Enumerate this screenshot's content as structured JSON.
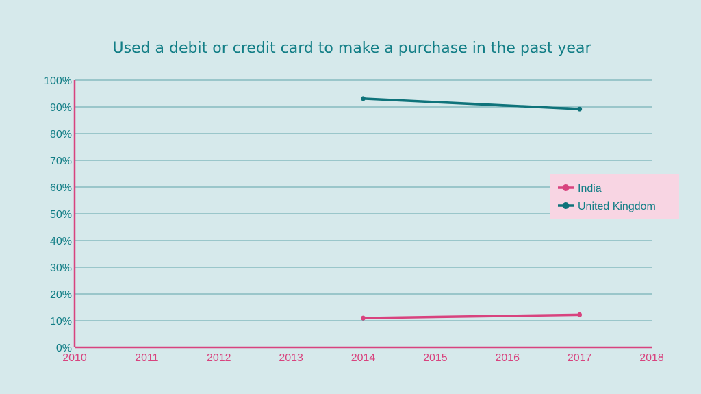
{
  "chart_data": {
    "type": "line",
    "title": "Used a debit or credit card to make a purchase in the past year",
    "xlabel": "",
    "ylabel": "",
    "x_ticks": [
      "2010",
      "2011",
      "2012",
      "2013",
      "2014",
      "2015",
      "2016",
      "2017",
      "2018"
    ],
    "y_ticks": [
      "0%",
      "10%",
      "20%",
      "30%",
      "40%",
      "50%",
      "60%",
      "70%",
      "80%",
      "90%",
      "100%"
    ],
    "xlim": [
      2010,
      2018
    ],
    "ylim": [
      0,
      100
    ],
    "grid": true,
    "legend_position": "right",
    "series": [
      {
        "name": "India",
        "color": "#d8437e",
        "x": [
          2014,
          2017
        ],
        "y": [
          11,
          12.2
        ]
      },
      {
        "name": "United Kingdom",
        "color": "#0f737a",
        "x": [
          2014,
          2017
        ],
        "y": [
          93.1,
          89.2
        ]
      }
    ],
    "colors": {
      "background": "#d6e9eb",
      "axis": "#d8437e",
      "grid": "#5fa3aa",
      "legend_bg": "#f8d5e3"
    }
  }
}
